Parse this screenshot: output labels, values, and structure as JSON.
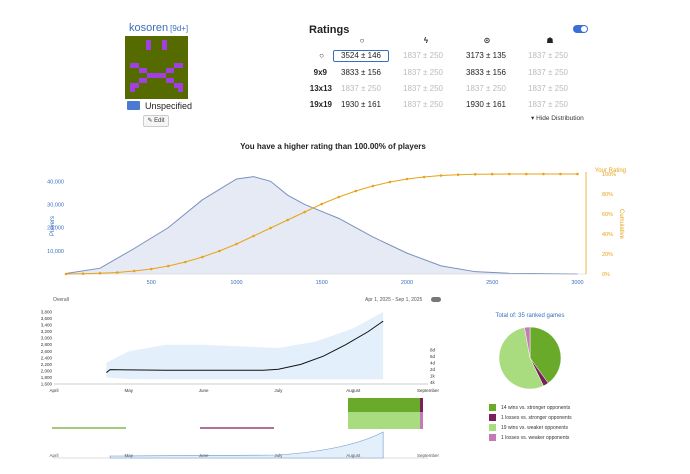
{
  "profile": {
    "username": "kosoren",
    "rank": "[9d+]",
    "country": "Unspecified",
    "edit_label": "Edit"
  },
  "ratings": {
    "title": "Ratings",
    "headers": [
      "overall-icon",
      "blitz-icon",
      "live-icon",
      "correspondence-icon"
    ],
    "rows": [
      {
        "label_icon": "overall-icon",
        "label": "",
        "cells": [
          "3524  ±  146",
          "1837  ±  250",
          "3173  ±  135",
          "1837  ±  250"
        ],
        "faded": [
          false,
          true,
          false,
          true
        ]
      },
      {
        "label": "9x9",
        "cells": [
          "3833  ±  156",
          "1837  ±  250",
          "3833  ±  156",
          "1837  ±  250"
        ],
        "faded": [
          false,
          true,
          false,
          true
        ]
      },
      {
        "label": "13x13",
        "cells": [
          "1837  ±  250",
          "1837  ±  250",
          "1837  ±  250",
          "1837  ±  250"
        ],
        "faded": [
          true,
          true,
          true,
          true
        ]
      },
      {
        "label": "19x19",
        "cells": [
          "1930  ±  161",
          "1837  ±  250",
          "1930  ±  161",
          "1837  ±  250"
        ],
        "faded": [
          false,
          true,
          false,
          true
        ]
      }
    ],
    "hide_distribution": "▾ Hide Distribution"
  },
  "headline": "You have a higher rating than 100.00% of players",
  "chart_data": [
    {
      "type": "area",
      "title": "",
      "xlabel": "",
      "ylabel": "Players",
      "y2label": "Cumulative",
      "y2_annotation": "Your Rating",
      "x_ticks": [
        500,
        1000,
        1500,
        2000,
        2500,
        3000
      ],
      "y_ticks": [
        "10,000",
        "20,000",
        "30,000",
        "40,000"
      ],
      "y2_ticks": [
        "0%",
        "20%",
        "40%",
        "60%",
        "80%",
        "100%"
      ],
      "xlim": [
        0,
        3050
      ],
      "ylim": [
        0,
        44000
      ],
      "distribution": {
        "x": [
          0,
          200,
          400,
          600,
          800,
          1000,
          1100,
          1200,
          1300,
          1400,
          1500,
          1600,
          1800,
          2000,
          2200,
          2400,
          2600,
          3000
        ],
        "y": [
          200,
          2500,
          11000,
          20000,
          32000,
          41000,
          42000,
          40000,
          34000,
          30000,
          27000,
          24000,
          16000,
          9000,
          3500,
          1000,
          300,
          0
        ]
      },
      "cumulative_pct": {
        "x": [
          0,
          100,
          200,
          300,
          400,
          500,
          600,
          700,
          800,
          900,
          1000,
          1100,
          1200,
          1300,
          1400,
          1500,
          1600,
          1700,
          1800,
          1900,
          2000,
          2100,
          2200,
          2300,
          2400,
          2500,
          2600,
          2700,
          2800,
          2900,
          3000
        ],
        "y": [
          0,
          0.3,
          0.8,
          1.5,
          3,
          5,
          8,
          12,
          17,
          23,
          30,
          38,
          46,
          54,
          62,
          70,
          77,
          83,
          88,
          92,
          95,
          97,
          98.5,
          99.3,
          99.7,
          99.9,
          100,
          100,
          100,
          100,
          100
        ]
      }
    },
    {
      "type": "line",
      "title": "",
      "y_ticks": [
        "1,600",
        "1,800",
        "2,000",
        "2,200",
        "2,400",
        "2,600",
        "2,800",
        "3,000",
        "3,200",
        "3,400",
        "3,600",
        "3,800"
      ],
      "y2_ticks": [
        "4k",
        "1k",
        "2d",
        "4d",
        "6d",
        "8d"
      ],
      "x_ticks": [
        "April",
        "May",
        "June",
        "July",
        "August",
        "September"
      ],
      "ylim": [
        1600,
        3800
      ],
      "rating": {
        "x": [
          0.7,
          0.75,
          1.0,
          1.5,
          2.0,
          2.5,
          2.8,
          3.0,
          3.3,
          3.6,
          3.9,
          4.2,
          4.4
        ],
        "y": [
          1950,
          2040,
          2030,
          2020,
          2020,
          2020,
          2020,
          2050,
          2200,
          2450,
          2800,
          3200,
          3520
        ]
      },
      "band_upper": {
        "x": [
          0.7,
          1.0,
          1.5,
          2.0,
          2.5,
          3.0,
          3.5,
          4.0,
          4.4
        ],
        "y": [
          2250,
          2600,
          2800,
          2800,
          2750,
          2700,
          2900,
          3300,
          3900
        ]
      },
      "band_lower": {
        "x": [
          0.7,
          1.0,
          1.5,
          2.0,
          2.5,
          3.0,
          3.5,
          4.0,
          4.4
        ],
        "y": [
          1800,
          1750,
          1740,
          1740,
          1740,
          1740,
          1740,
          1740,
          1740
        ]
      }
    },
    {
      "type": "pie",
      "title": "Total of: 35 ranked games",
      "slices": [
        {
          "label": "14 wins vs. stronger opponents",
          "value": 14,
          "color": "#6aaa2a"
        },
        {
          "label": "1 losses vs. stronger opponents",
          "value": 1,
          "color": "#7a1f5a"
        },
        {
          "label": "19 wins vs. weaker opponents",
          "value": 19,
          "color": "#a8dc7e"
        },
        {
          "label": "1 losses vs. weaker opponents",
          "value": 1,
          "color": "#c47ab4"
        }
      ]
    }
  ],
  "timeline": {
    "overall_label": "Overall",
    "date_range": "Apr 1, 2025 - Sep 1, 2025",
    "nav_ticks": [
      "April",
      "May",
      "June",
      "July",
      "August",
      "September"
    ]
  },
  "colors": {
    "accent": "#3b6fd8",
    "orange": "#e8a317",
    "dist_fill": "#e6eaf4",
    "dist_line": "#7a90c0"
  }
}
